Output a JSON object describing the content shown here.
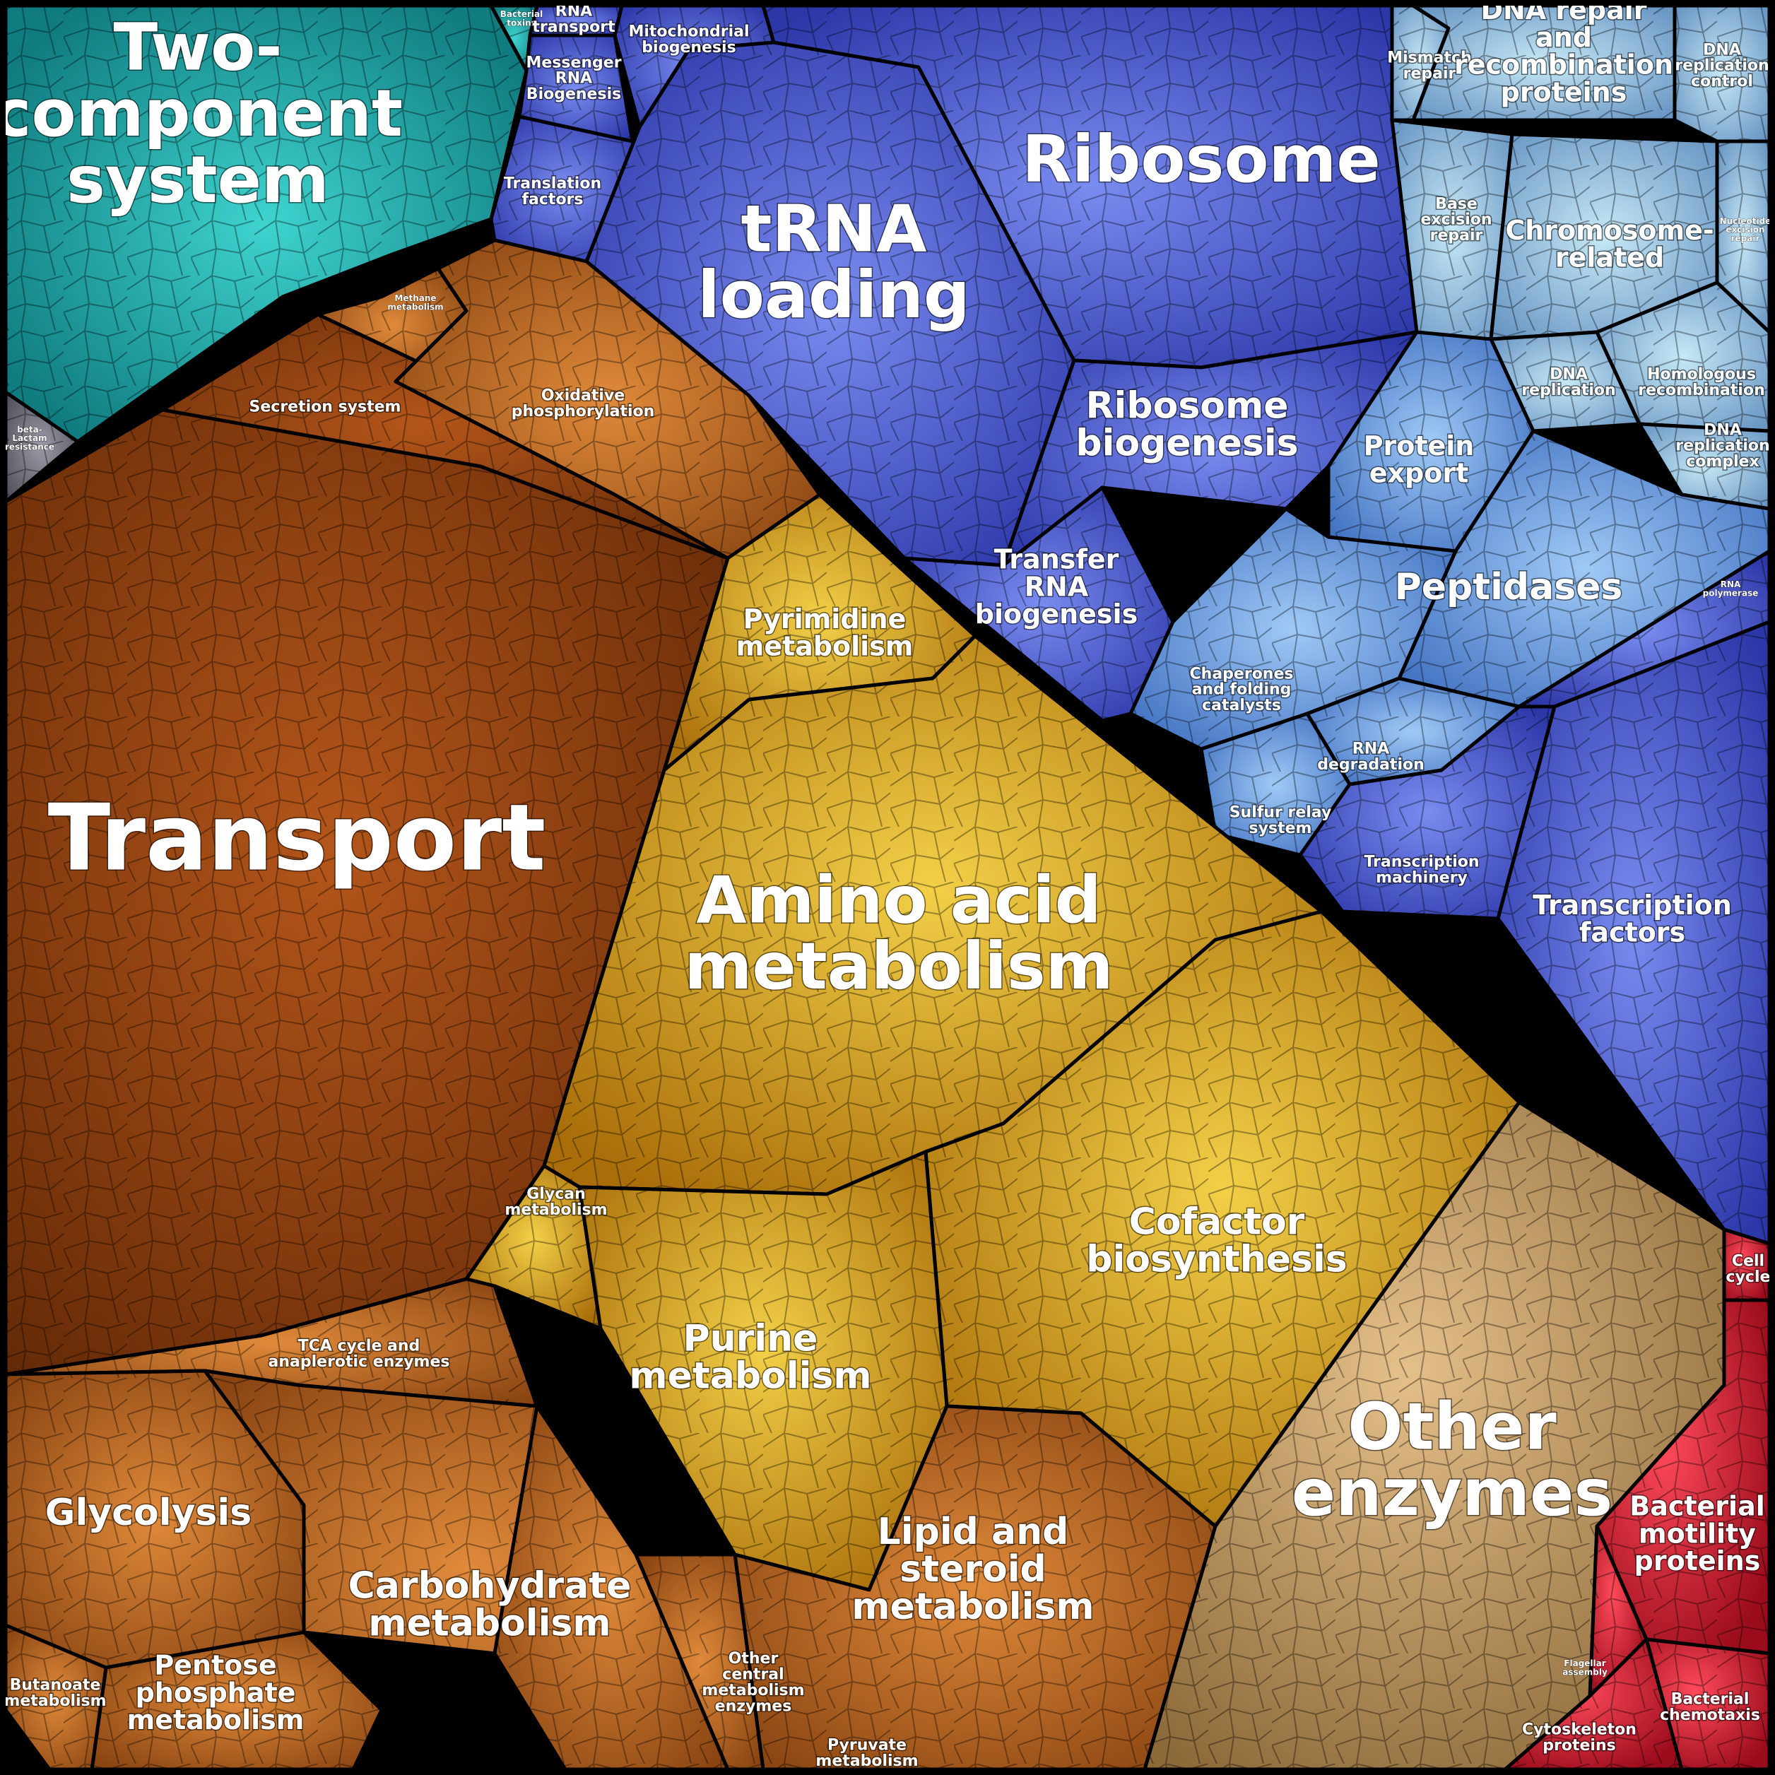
{
  "palette": {
    "teal": "#1aa3a3",
    "blue": "#4a5fd0",
    "lightblue": "#6fa0d8",
    "paleblue": "#9fc6df",
    "darkorange": "#8a3f10",
    "orange": "#b86a22",
    "gold": "#d29a20",
    "tan": "#c79a5a",
    "red": "#d0202f",
    "magenta": "#b0208a",
    "grey": "#6a6a74"
  },
  "cells": [
    {
      "id": "two-component",
      "color": "teal",
      "label": [
        "Two-",
        "component",
        "system"
      ],
      "size": "xl"
    },
    {
      "id": "bacterial-toxins",
      "color": "teal",
      "label": [
        "Bacterial",
        "toxins"
      ],
      "size": "xs"
    },
    {
      "id": "beta-lactam",
      "color": "grey",
      "label": [
        "beta-",
        "Lactam",
        "resistance"
      ],
      "size": "xs"
    },
    {
      "id": "rna-transport",
      "color": "blue",
      "label": [
        "RNA",
        "transport"
      ],
      "size": "s"
    },
    {
      "id": "mrna-biogenesis",
      "color": "blue",
      "label": [
        "Messenger",
        "RNA",
        "Biogenesis"
      ],
      "size": "s"
    },
    {
      "id": "mito-biogenesis",
      "color": "blue",
      "label": [
        "Mitochondrial",
        "biogenesis"
      ],
      "size": "s"
    },
    {
      "id": "translation-factors",
      "color": "blue",
      "label": [
        "Translation",
        "factors"
      ],
      "size": "s"
    },
    {
      "id": "trna-loading",
      "color": "blue",
      "label": [
        "tRNA",
        "loading"
      ],
      "size": "xl"
    },
    {
      "id": "ribosome",
      "color": "blue",
      "label": [
        "Ribosome"
      ],
      "size": "xl"
    },
    {
      "id": "ribosome-biogenesis",
      "color": "blue",
      "label": [
        "Ribosome",
        "biogenesis"
      ],
      "size": "l"
    },
    {
      "id": "transfer-rna-biogenesis",
      "color": "blue",
      "label": [
        "Transfer",
        "RNA",
        "biogenesis"
      ],
      "size": "m"
    },
    {
      "id": "mismatch-repair",
      "color": "paleblue",
      "label": [
        "Mismatch",
        "repair"
      ],
      "size": "s"
    },
    {
      "id": "dna-repair",
      "color": "paleblue",
      "label": [
        "DNA repair",
        "and",
        "recombination",
        "proteins"
      ],
      "size": "m"
    },
    {
      "id": "dna-replication-control",
      "color": "paleblue",
      "label": [
        "DNA",
        "replication",
        "control"
      ],
      "size": "s"
    },
    {
      "id": "base-excision",
      "color": "paleblue",
      "label": [
        "Base",
        "excision",
        "repair"
      ],
      "size": "s"
    },
    {
      "id": "chromosome-related",
      "color": "paleblue",
      "label": [
        "Chromosome-",
        "related"
      ],
      "size": "m"
    },
    {
      "id": "nucleotide-excision",
      "color": "paleblue",
      "label": [
        "Nucleotide",
        "excision",
        "repair"
      ],
      "size": "xs"
    },
    {
      "id": "dna-replication",
      "color": "paleblue",
      "label": [
        "DNA",
        "replication"
      ],
      "size": "s"
    },
    {
      "id": "homologous-recombination",
      "color": "paleblue",
      "label": [
        "Homologous",
        "recombination"
      ],
      "size": "s"
    },
    {
      "id": "dna-replication-complex",
      "color": "paleblue",
      "label": [
        "DNA",
        "replication",
        "complex"
      ],
      "size": "s"
    },
    {
      "id": "protein-export",
      "color": "lightblue",
      "label": [
        "Protein",
        "export"
      ],
      "size": "m"
    },
    {
      "id": "peptidases",
      "color": "lightblue",
      "label": [
        "Peptidases"
      ],
      "size": "l"
    },
    {
      "id": "chaperones",
      "color": "lightblue",
      "label": [
        "Chaperones",
        "and folding",
        "catalysts"
      ],
      "size": "s"
    },
    {
      "id": "rna-degradation",
      "color": "lightblue",
      "label": [
        "RNA",
        "degradation"
      ],
      "size": "s"
    },
    {
      "id": "sulfur-relay",
      "color": "lightblue",
      "label": [
        "Sulfur relay",
        "system"
      ],
      "size": "s"
    },
    {
      "id": "rna-polymerase",
      "color": "blue",
      "label": [
        "RNA",
        "polymerase"
      ],
      "size": "xs"
    },
    {
      "id": "transcription-machinery",
      "color": "blue",
      "label": [
        "Transcription",
        "machinery"
      ],
      "size": "s"
    },
    {
      "id": "transcription-factors",
      "color": "blue",
      "label": [
        "Transcription",
        "factors"
      ],
      "size": "m"
    },
    {
      "id": "transport",
      "color": "darkorange",
      "label": [
        "Transport"
      ],
      "size": "xxl"
    },
    {
      "id": "secretion-system",
      "color": "darkorange",
      "label": [
        "Secretion system"
      ],
      "size": "s"
    },
    {
      "id": "methane-metabolism",
      "color": "orange",
      "label": [
        "Methane",
        "metabolism"
      ],
      "size": "xs"
    },
    {
      "id": "oxidative-phosphorylation",
      "color": "orange",
      "label": [
        "Oxidative",
        "phosphorylation"
      ],
      "size": "s"
    },
    {
      "id": "pyrimidine",
      "color": "gold",
      "label": [
        "Pyrimidine",
        "metabolism"
      ],
      "size": "m"
    },
    {
      "id": "amino-acid",
      "color": "gold",
      "label": [
        "Amino acid",
        "metabolism"
      ],
      "size": "xl"
    },
    {
      "id": "glycan",
      "color": "gold",
      "label": [
        "Glycan",
        "metabolism"
      ],
      "size": "s"
    },
    {
      "id": "cofactor",
      "color": "gold",
      "label": [
        "Cofactor",
        "biosynthesis"
      ],
      "size": "l"
    },
    {
      "id": "purine",
      "color": "gold",
      "label": [
        "Purine",
        "metabolism"
      ],
      "size": "l"
    },
    {
      "id": "lipid",
      "color": "orange",
      "label": [
        "Lipid and",
        "steroid",
        "metabolism"
      ],
      "size": "l"
    },
    {
      "id": "tca",
      "color": "orange",
      "label": [
        "TCA cycle and",
        "anaplerotic enzymes"
      ],
      "size": "s"
    },
    {
      "id": "glycolysis",
      "color": "orange",
      "label": [
        "Glycolysis"
      ],
      "size": "l"
    },
    {
      "id": "carbohydrate",
      "color": "orange",
      "label": [
        "Carbohydrate",
        "metabolism"
      ],
      "size": "l"
    },
    {
      "id": "pentose",
      "color": "orange",
      "label": [
        "Pentose",
        "phosphate",
        "metabolism"
      ],
      "size": "m"
    },
    {
      "id": "butanoate",
      "color": "orange",
      "label": [
        "Butanoate",
        "metabolism"
      ],
      "size": "s"
    },
    {
      "id": "other-central",
      "color": "orange",
      "label": [
        "Other",
        "central",
        "metabolism",
        "enzymes"
      ],
      "size": "s"
    },
    {
      "id": "pyruvate",
      "color": "orange",
      "label": [
        "Pyruvate",
        "metabolism"
      ],
      "size": "s"
    },
    {
      "id": "other-enzymes",
      "color": "tan",
      "label": [
        "Other",
        "enzymes"
      ],
      "size": "xl"
    },
    {
      "id": "cell-cycle",
      "color": "red",
      "label": [
        "Cell",
        "cycle"
      ],
      "size": "s"
    },
    {
      "id": "bacterial-motility",
      "color": "red",
      "label": [
        "Bacterial",
        "motility",
        "proteins"
      ],
      "size": "m"
    },
    {
      "id": "flagellar-assembly",
      "color": "red",
      "label": [
        "Flagellar",
        "assembly"
      ],
      "size": "xs"
    },
    {
      "id": "bacterial-chemotaxis",
      "color": "red",
      "label": [
        "Bacterial",
        "chemotaxis"
      ],
      "size": "s"
    },
    {
      "id": "cytoskeleton",
      "color": "red",
      "label": [
        "Cytoskeleton",
        "proteins"
      ],
      "size": "s"
    }
  ]
}
